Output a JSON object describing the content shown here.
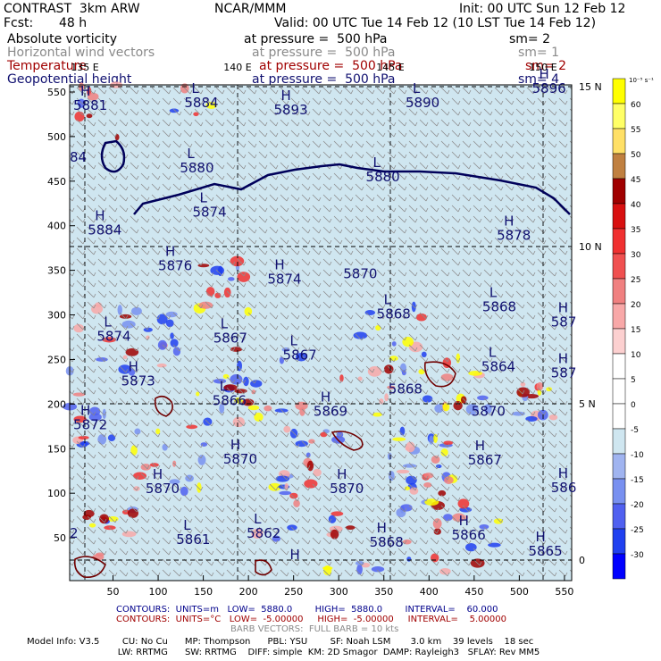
{
  "header": {
    "model_title": "CONTRAST  3km ARW",
    "org": "NCAR/MMM",
    "init": "Init: 00 UTC Sun 12 Feb 12",
    "fcst_label": "Fcst:",
    "fcst_value": "48 h",
    "valid": "Valid: 00 UTC Tue 14 Feb 12 (10 LST Tue 14 Feb 12)",
    "fields": [
      {
        "name": "Absolute vorticity",
        "level": "at pressure =  500 hPa",
        "sm": "sm= 2",
        "color": "#000000"
      },
      {
        "name": "Horizontal wind vectors",
        "level": "at pressure =  500 hPa",
        "sm": "sm= 1",
        "color": "#8a8a8a"
      },
      {
        "name": "Temperature",
        "level": "at pressure =  500 hPa",
        "sm": "sm= 2",
        "color": "#a00000"
      },
      {
        "name": "Geopotential height",
        "level": "at pressure =  500 hPa",
        "sm": "sm= 4",
        "color": "#101070"
      }
    ]
  },
  "footer": {
    "contours_line1": "CONTOURS:  UNITS=m   LOW=  5880.0        HIGH=  5880.0        INTERVAL=    60.000",
    "contours_line2": "CONTOURS:  UNITS=°C   LOW=  -5.00000     HIGH=  -5.00000     INTERVAL=    5.00000",
    "barb": "BARB VECTORS:  FULL BARB = 10 kts",
    "model_info_1": "Model Info: V3.5        CU: No Cu      MP: Thompson      PBL: YSU        SF: Noah LSM       3.0 km    39 levels    18 sec",
    "model_info_2": "                                LW: RRTMG      SW: RRTMG    DIFF: simple  KM: 2D Smagor  DAMP: Rayleigh3   SFLAY: Rev MM5",
    "contour_color_1": "#00008b",
    "contour_color_2": "#a00000"
  },
  "chart_data": {
    "type": "heatmap",
    "field": "Absolute vorticity",
    "x_ticks": [
      50,
      100,
      150,
      200,
      250,
      300,
      350,
      400,
      450,
      500,
      550
    ],
    "y_ticks": [
      50,
      100,
      150,
      200,
      250,
      300,
      350,
      400,
      450,
      500,
      550
    ],
    "xlim": [
      2,
      558
    ],
    "ylim": [
      2,
      558
    ],
    "lon_labels": [
      "135 E",
      "140 E",
      "145 E",
      "150 E"
    ],
    "lon_values": [
      135,
      140,
      145,
      150
    ],
    "lat_labels": [
      "15 N",
      "10 N",
      "5 N",
      "0"
    ],
    "lat_values": [
      15,
      10,
      5,
      0
    ],
    "colorbar": {
      "unit_label": "10⁻⁵ s⁻¹",
      "levels": [
        "60",
        "55",
        "50",
        "45",
        "40",
        "35",
        "30",
        "25",
        "20",
        "15",
        "10",
        "5",
        "0",
        "-5",
        "-10",
        "-15",
        "-20",
        "-25",
        "-30"
      ],
      "colors": [
        "#ffff00",
        "#ffff66",
        "#ffe066",
        "#c08040",
        "#a00000",
        "#d81010",
        "#f03030",
        "#f05050",
        "#f08080",
        "#f8a8a8",
        "#fcd0d0",
        "#ffffff",
        "#ffffff",
        "#ffffff",
        "#cfe6f0",
        "#a0b4f0",
        "#7890f0",
        "#5060f0",
        "#2040f0",
        "#0000ff"
      ]
    },
    "height_contour_value": 5880,
    "height_labels": [
      {
        "t": "H",
        "v": "5881",
        "x": 6,
        "y": 532
      },
      {
        "t": "L",
        "v": "5884",
        "x": 129,
        "y": 535
      },
      {
        "t": "H",
        "v": "5893",
        "x": 228,
        "y": 527
      },
      {
        "t": "L",
        "v": "5890",
        "x": 374,
        "y": 535
      },
      {
        "t": "H",
        "v": "5896",
        "x": 514,
        "y": 551
      },
      {
        "t": "",
        "v": "84",
        "x": 2,
        "y": 474
      },
      {
        "t": "L",
        "v": "5880",
        "x": 124,
        "y": 462
      },
      {
        "t": "L",
        "v": "5880",
        "x": 330,
        "y": 452
      },
      {
        "t": "L",
        "v": "5874",
        "x": 138,
        "y": 412
      },
      {
        "t": "H",
        "v": "5884",
        "x": 22,
        "y": 392
      },
      {
        "t": "H",
        "v": "5878",
        "x": 475,
        "y": 386
      },
      {
        "t": "H",
        "v": "5876",
        "x": 100,
        "y": 352
      },
      {
        "t": "H",
        "v": "5874",
        "x": 221,
        "y": 337
      },
      {
        "t": "",
        "v": "5870",
        "x": 305,
        "y": 343
      },
      {
        "t": "L",
        "v": "5868",
        "x": 342,
        "y": 298
      },
      {
        "t": "L",
        "v": "5868",
        "x": 459,
        "y": 306
      },
      {
        "t": "H",
        "v": "587",
        "x": 535,
        "y": 289
      },
      {
        "t": "L",
        "v": "5874",
        "x": 32,
        "y": 273
      },
      {
        "t": "L",
        "v": "5867",
        "x": 161,
        "y": 271
      },
      {
        "t": "L",
        "v": "5867",
        "x": 238,
        "y": 252
      },
      {
        "t": "L",
        "v": "5864",
        "x": 458,
        "y": 239
      },
      {
        "t": "H",
        "v": "587",
        "x": 535,
        "y": 232
      },
      {
        "t": "H",
        "v": "5873",
        "x": 59,
        "y": 223
      },
      {
        "t": "",
        "v": "5868",
        "x": 355,
        "y": 214
      },
      {
        "t": "L",
        "v": "5866",
        "x": 160,
        "y": 201
      },
      {
        "t": "H",
        "v": "5869",
        "x": 272,
        "y": 189
      },
      {
        "t": "",
        "v": "5870",
        "x": 447,
        "y": 189
      },
      {
        "t": "H",
        "v": "5872",
        "x": 6,
        "y": 174
      },
      {
        "t": "H",
        "v": "5870",
        "x": 172,
        "y": 135
      },
      {
        "t": "H",
        "v": "5867",
        "x": 443,
        "y": 134
      },
      {
        "t": "H",
        "v": "5870",
        "x": 86,
        "y": 102
      },
      {
        "t": "H",
        "v": "5870",
        "x": 290,
        "y": 102
      },
      {
        "t": "H",
        "v": "586",
        "x": 535,
        "y": 103
      },
      {
        "t": "L",
        "v": "5862",
        "x": 198,
        "y": 52
      },
      {
        "t": "L",
        "v": "5861",
        "x": 120,
        "y": 45
      },
      {
        "t": "H",
        "v": "5868",
        "x": 334,
        "y": 42
      },
      {
        "t": "H",
        "v": "5866",
        "x": 425,
        "y": 50
      },
      {
        "t": "H",
        "v": "5865",
        "x": 510,
        "y": 32
      },
      {
        "t": "",
        "v": "2",
        "x": 2,
        "y": 52
      },
      {
        "t": "H",
        "v": "",
        "x": 238,
        "y": 12
      }
    ]
  }
}
